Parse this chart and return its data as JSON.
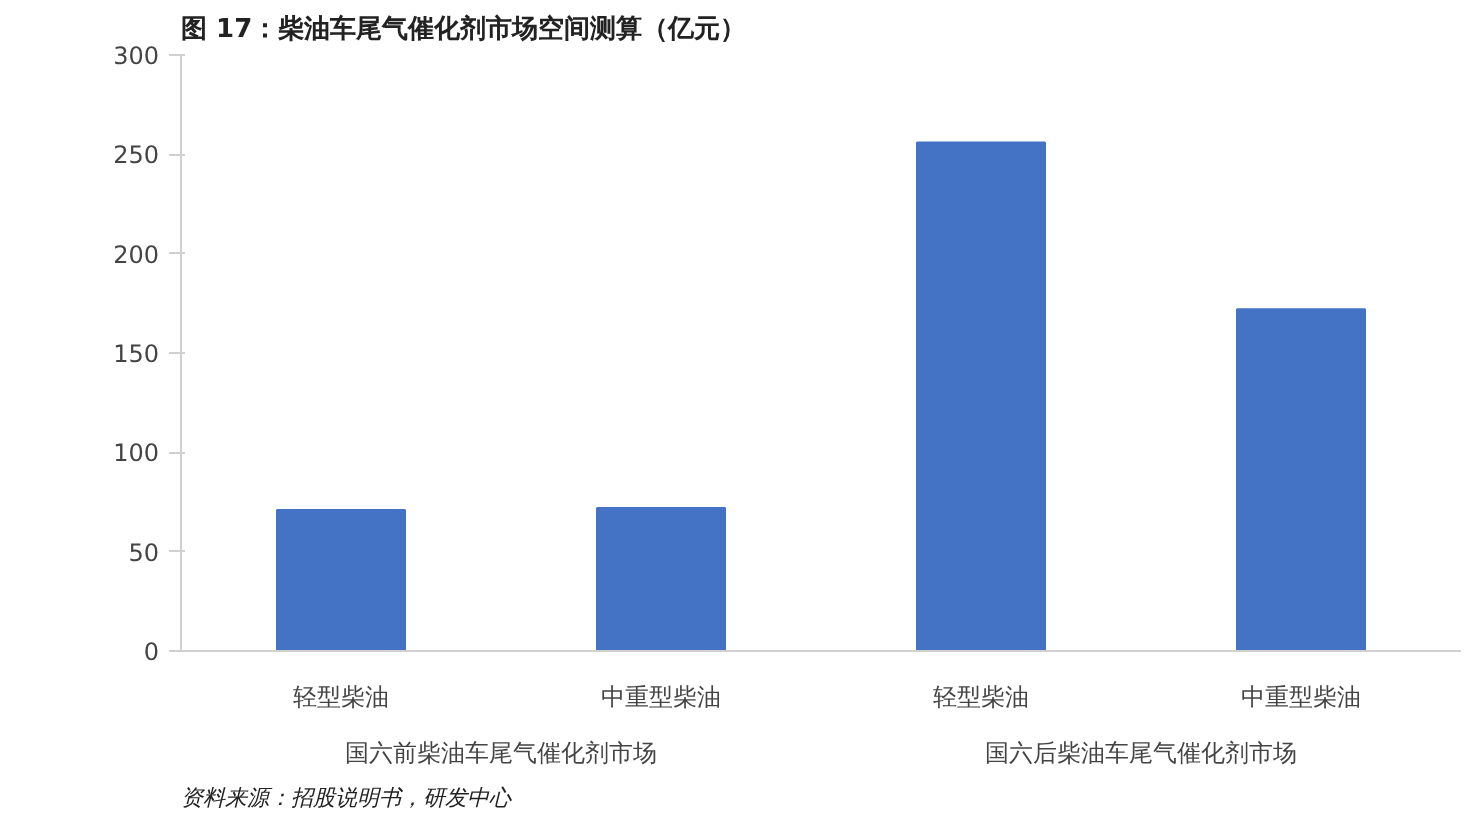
{
  "chart_data": {
    "type": "bar",
    "title": "图 17：柴油车尾气催化剂市场空间测算（亿元）",
    "categories": [
      "轻型柴油",
      "中重型柴油",
      "轻型柴油",
      "中重型柴油"
    ],
    "values": [
      71,
      72,
      256,
      172
    ],
    "color": "#4472c4",
    "ylim": [
      0,
      300
    ],
    "yticks": [
      0,
      50,
      100,
      150,
      200,
      250,
      300
    ],
    "grid": false,
    "annotations": [
      "国六前柴油车尾气催化剂市场",
      "国六后柴油车尾气催化剂市场",
      "资料来源：招股说明书，研发中心"
    ]
  }
}
